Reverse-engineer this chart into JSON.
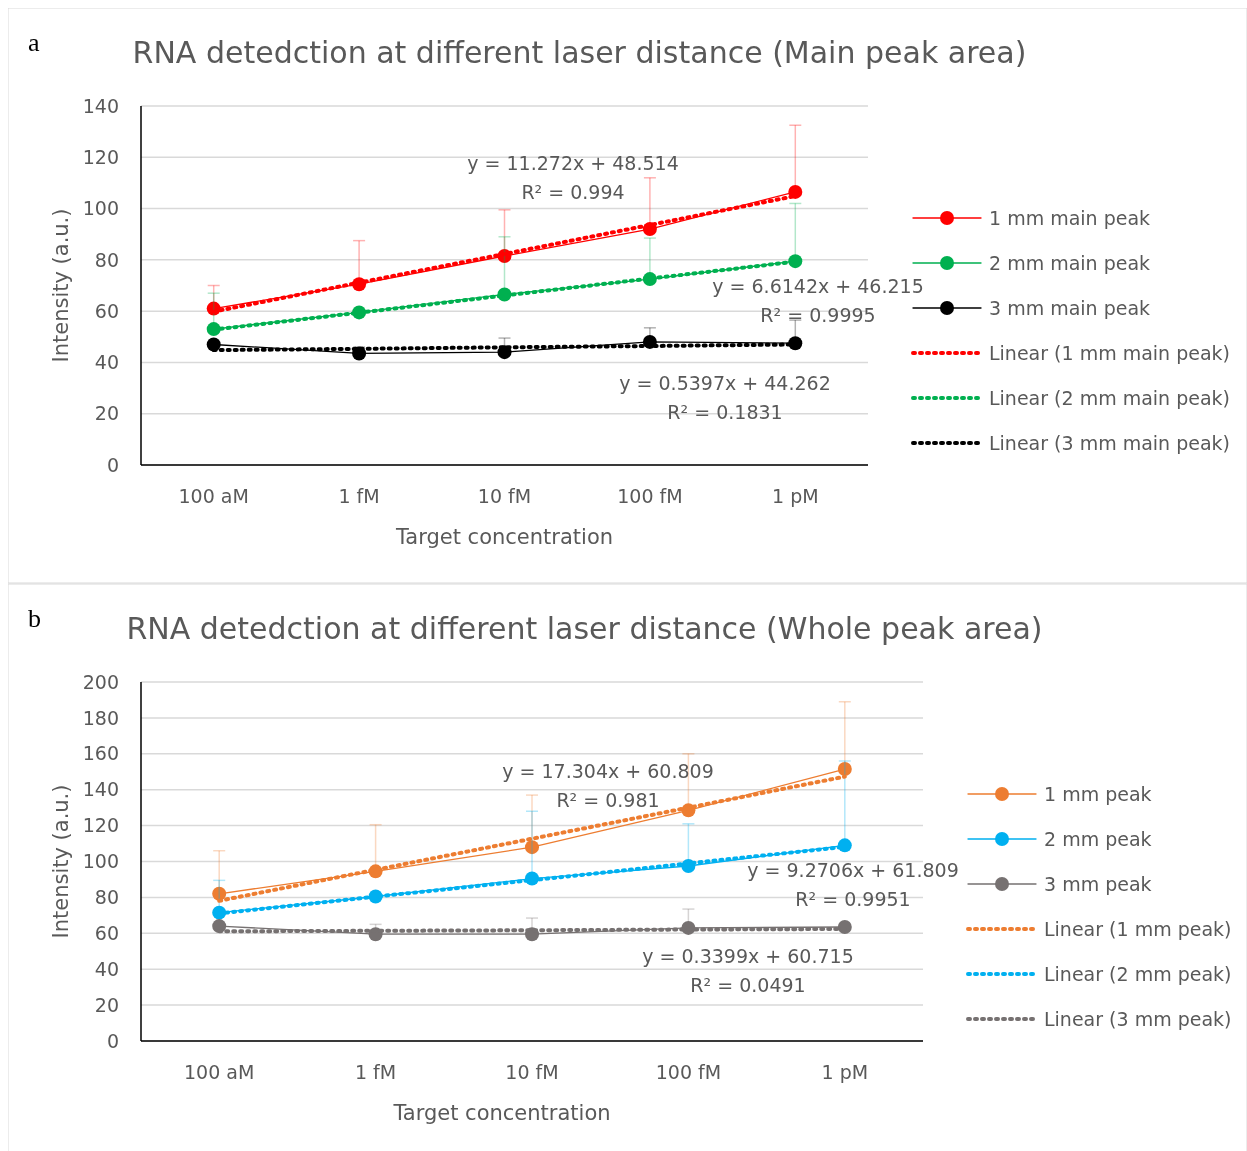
{
  "chart_data": [
    {
      "type": "line",
      "title": "RNA detedction at different laser distance (Main peak area)",
      "xlabel": "Target concentration",
      "ylabel": "Intensity (a.u.)",
      "categories": [
        "100 aM",
        "1 fM",
        "10 fM",
        "100 fM",
        "1 pM"
      ],
      "ylim": [
        0,
        140
      ],
      "yticks": [
        0,
        20,
        40,
        60,
        80,
        100,
        120,
        140
      ],
      "grid": "y",
      "legend": "right",
      "marker": "circle",
      "series": [
        {
          "name": "1 mm main peak",
          "color": "#ff0000",
          "values": [
            61,
            70.5,
            81.5,
            92,
            106.5
          ],
          "errors": [
            [
              61,
              70
            ],
            [
              70.5,
              87.5
            ],
            [
              81.5,
              99.5
            ],
            [
              92,
              112
            ],
            [
              106.5,
              132.5
            ]
          ]
        },
        {
          "name": "2 mm main peak",
          "color": "#00b050",
          "values": [
            53,
            59.5,
            66.5,
            72.5,
            79.5
          ],
          "errors": [
            [
              53,
              67
            ],
            null,
            [
              66.5,
              89
            ],
            [
              72.5,
              88.5
            ],
            [
              79.5,
              102
            ]
          ]
        },
        {
          "name": "3 mm main peak",
          "color": "#000000",
          "values": [
            47,
            43.5,
            44,
            48,
            47.5
          ],
          "errors": [
            null,
            [
              43.5,
              46
            ],
            [
              44,
              49.5
            ],
            [
              48,
              53.5
            ],
            [
              47.5,
              56.5
            ]
          ]
        },
        {
          "name": "Linear (1 mm main peak)",
          "type": "line",
          "color": "#ff0000",
          "line_style": "dotted",
          "marker": "none",
          "values": [
            59.8,
            71.1,
            82.3,
            93.6,
            104.9
          ]
        },
        {
          "name": "Linear (2 mm main peak)",
          "type": "line",
          "color": "#00b050",
          "line_style": "dotted",
          "marker": "none",
          "values": [
            52.8,
            59.4,
            66.1,
            72.7,
            79.3
          ]
        },
        {
          "name": "Linear (3 mm main peak)",
          "type": "line",
          "color": "#000000",
          "line_style": "dotted",
          "marker": "none",
          "values": [
            44.8,
            45.3,
            45.9,
            46.4,
            47
          ]
        }
      ],
      "annotations": [
        "a",
        "y = 11.272x + 48.514\nR² = 0.994",
        "y = 6.6142x + 46.215\nR² = 0.9995",
        "y = 0.5397x + 44.262\nR² = 0.1831"
      ]
    },
    {
      "type": "line",
      "title": "RNA detedction at different laser distance (Whole peak area)",
      "xlabel": "Target concentration",
      "ylabel": "Intensity (a.u.)",
      "categories": [
        "100 aM",
        "1 fM",
        "10 fM",
        "100 fM",
        "1 pM"
      ],
      "ylim": [
        0,
        200
      ],
      "yticks": [
        0,
        20,
        40,
        60,
        80,
        100,
        120,
        140,
        160,
        180,
        200
      ],
      "grid": "y",
      "legend": "right",
      "marker": "circle",
      "series": [
        {
          "name": "1 mm peak",
          "color": "#ed7d31",
          "values": [
            82,
            94.5,
            108,
            128.5,
            151.5
          ],
          "errors": [
            [
              82,
              106
            ],
            [
              94.5,
              120.5
            ],
            [
              108,
              137
            ],
            [
              128.5,
              160
            ],
            [
              151.5,
              189
            ]
          ]
        },
        {
          "name": "2 mm peak",
          "color": "#00b0f0",
          "values": [
            71.5,
            80.5,
            90.5,
            97.5,
            109
          ],
          "errors": [
            [
              71.5,
              89.5
            ],
            null,
            [
              90.5,
              128
            ],
            [
              97.5,
              121
            ],
            [
              109,
              156
            ]
          ]
        },
        {
          "name": "3 mm peak",
          "color": "#767171",
          "values": [
            64,
            59.5,
            59.5,
            63,
            63.5
          ],
          "errors": [
            null,
            [
              59.5,
              65
            ],
            [
              59.5,
              68.5
            ],
            [
              63,
              73.5
            ],
            null
          ]
        },
        {
          "name": "Linear (1 mm peak)",
          "type": "line",
          "color": "#ed7d31",
          "line_style": "dotted",
          "marker": "none",
          "values": [
            78.1,
            95.4,
            112.7,
            130,
            147.3
          ]
        },
        {
          "name": "Linear (2 mm peak)",
          "type": "line",
          "color": "#00b0f0",
          "line_style": "dotted",
          "marker": "none",
          "values": [
            71.1,
            80.4,
            89.6,
            98.9,
            108.2
          ]
        },
        {
          "name": "Linear (3 mm peak)",
          "type": "line",
          "color": "#767171",
          "line_style": "dotted",
          "marker": "none",
          "values": [
            61.1,
            61.4,
            61.7,
            62.1,
            62.4
          ]
        }
      ],
      "annotations": [
        "b",
        "y = 17.304x + 60.809\nR² = 0.981",
        "y = 9.2706x + 61.809\nR² = 0.9951",
        "y = 0.3399x + 60.715\nR² = 0.0491"
      ]
    }
  ]
}
